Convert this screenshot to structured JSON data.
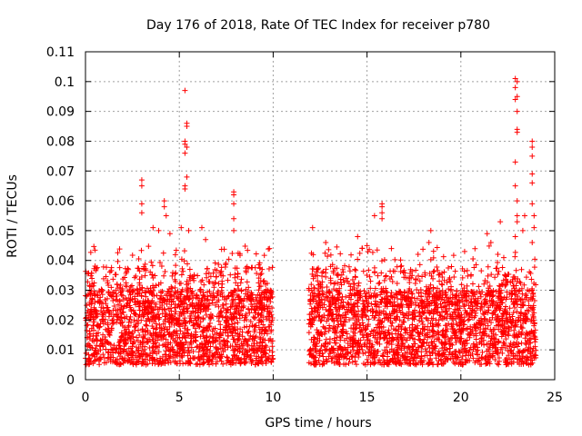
{
  "chart_data": {
    "type": "scatter",
    "title": "Day 176 of 2018, Rate Of TEC Index for receiver p780",
    "xlabel": "GPS time / hours",
    "ylabel": "ROTI / TECUs",
    "xlim": [
      0,
      25
    ],
    "ylim": [
      0,
      0.11
    ],
    "grid": true,
    "marker": "+",
    "color": "#ff0000",
    "xticks": [
      0,
      5,
      10,
      15,
      20,
      25
    ],
    "xtick_labels": [
      "0",
      "5",
      "10",
      "15",
      "20",
      "25"
    ],
    "yticks": [
      0,
      0.01,
      0.02,
      0.03,
      0.04,
      0.05,
      0.06,
      0.07,
      0.08,
      0.09,
      0.1,
      0.11
    ],
    "ytick_labels": [
      "0",
      "0.01",
      "0.02",
      "0.03",
      "0.04",
      "0.05",
      "0.06",
      "0.07",
      "0.08",
      "0.09",
      "0.1",
      "0.11"
    ],
    "data_gap_hours": [
      10.0,
      11.9
    ],
    "series": [
      {
        "name": "ROTI",
        "coverage_hours": [
          [
            0.0,
            10.0
          ],
          [
            11.9,
            24.0
          ]
        ],
        "typical_range": [
          0.005,
          0.03
        ],
        "outliers": [
          {
            "x": 3.0,
            "y": 0.067
          },
          {
            "x": 3.0,
            "y": 0.065
          },
          {
            "x": 3.0,
            "y": 0.059
          },
          {
            "x": 3.0,
            "y": 0.056
          },
          {
            "x": 3.6,
            "y": 0.051
          },
          {
            "x": 3.9,
            "y": 0.05
          },
          {
            "x": 4.2,
            "y": 0.06
          },
          {
            "x": 4.2,
            "y": 0.058
          },
          {
            "x": 4.3,
            "y": 0.055
          },
          {
            "x": 4.5,
            "y": 0.049
          },
          {
            "x": 5.1,
            "y": 0.051
          },
          {
            "x": 5.3,
            "y": 0.097
          },
          {
            "x": 5.4,
            "y": 0.086
          },
          {
            "x": 5.4,
            "y": 0.085
          },
          {
            "x": 5.3,
            "y": 0.08
          },
          {
            "x": 5.3,
            "y": 0.079
          },
          {
            "x": 5.4,
            "y": 0.078
          },
          {
            "x": 5.3,
            "y": 0.076
          },
          {
            "x": 5.4,
            "y": 0.068
          },
          {
            "x": 5.3,
            "y": 0.065
          },
          {
            "x": 5.3,
            "y": 0.064
          },
          {
            "x": 5.5,
            "y": 0.05
          },
          {
            "x": 6.2,
            "y": 0.051
          },
          {
            "x": 6.4,
            "y": 0.047
          },
          {
            "x": 7.9,
            "y": 0.063
          },
          {
            "x": 7.9,
            "y": 0.062
          },
          {
            "x": 7.9,
            "y": 0.059
          },
          {
            "x": 7.9,
            "y": 0.054
          },
          {
            "x": 7.9,
            "y": 0.05
          },
          {
            "x": 9.8,
            "y": 0.044
          },
          {
            "x": 12.1,
            "y": 0.051
          },
          {
            "x": 12.8,
            "y": 0.046
          },
          {
            "x": 14.5,
            "y": 0.048
          },
          {
            "x": 15.4,
            "y": 0.055
          },
          {
            "x": 15.8,
            "y": 0.059
          },
          {
            "x": 15.8,
            "y": 0.058
          },
          {
            "x": 15.8,
            "y": 0.056
          },
          {
            "x": 15.8,
            "y": 0.054
          },
          {
            "x": 15.0,
            "y": 0.045
          },
          {
            "x": 16.3,
            "y": 0.044
          },
          {
            "x": 18.4,
            "y": 0.05
          },
          {
            "x": 18.3,
            "y": 0.046
          },
          {
            "x": 20.2,
            "y": 0.043
          },
          {
            "x": 21.4,
            "y": 0.049
          },
          {
            "x": 21.6,
            "y": 0.046
          },
          {
            "x": 22.1,
            "y": 0.053
          },
          {
            "x": 22.9,
            "y": 0.101
          },
          {
            "x": 23.0,
            "y": 0.1
          },
          {
            "x": 22.9,
            "y": 0.098
          },
          {
            "x": 23.0,
            "y": 0.095
          },
          {
            "x": 22.9,
            "y": 0.094
          },
          {
            "x": 23.0,
            "y": 0.09
          },
          {
            "x": 23.0,
            "y": 0.084
          },
          {
            "x": 23.0,
            "y": 0.083
          },
          {
            "x": 22.9,
            "y": 0.073
          },
          {
            "x": 22.9,
            "y": 0.065
          },
          {
            "x": 23.0,
            "y": 0.06
          },
          {
            "x": 23.0,
            "y": 0.055
          },
          {
            "x": 23.0,
            "y": 0.053
          },
          {
            "x": 22.9,
            "y": 0.048
          },
          {
            "x": 23.3,
            "y": 0.05
          },
          {
            "x": 23.4,
            "y": 0.055
          },
          {
            "x": 23.8,
            "y": 0.08
          },
          {
            "x": 23.8,
            "y": 0.078
          },
          {
            "x": 23.8,
            "y": 0.075
          },
          {
            "x": 23.8,
            "y": 0.069
          },
          {
            "x": 23.8,
            "y": 0.066
          },
          {
            "x": 23.8,
            "y": 0.059
          },
          {
            "x": 23.9,
            "y": 0.055
          },
          {
            "x": 23.9,
            "y": 0.051
          },
          {
            "x": 23.8,
            "y": 0.046
          }
        ]
      }
    ]
  }
}
